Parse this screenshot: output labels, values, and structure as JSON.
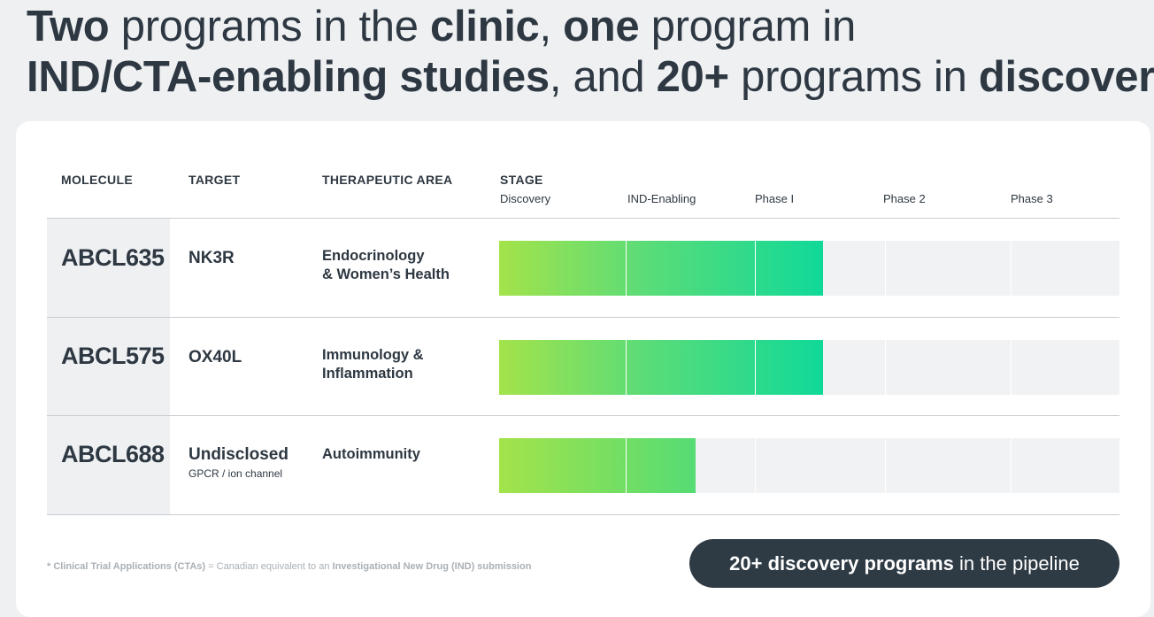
{
  "headline": {
    "line1": {
      "b1": "Two",
      "t1": " programs in the ",
      "b2": "clinic",
      "t2": ", ",
      "b3": "one",
      "t3": " program in"
    },
    "line2": {
      "b1": "IND/CTA-enabling studies",
      "t1": ", and ",
      "b2": "20+",
      "t2": " programs in ",
      "b3": "discovery",
      "t3": "."
    }
  },
  "columns": {
    "molecule": "MOLECULE",
    "target": "TARGET",
    "area": "THERAPEUTIC AREA",
    "stage": "STAGE",
    "stages": [
      "Discovery",
      "IND-Enabling",
      "Phase I",
      "Phase 2",
      "Phase 3"
    ]
  },
  "rows": [
    {
      "molecule": "ABCL635",
      "target": "NK3R",
      "target_sub": "",
      "area_line1": "Endocrinology",
      "area_line2": "& Women’s Health",
      "progress_stage": "Phase I",
      "progress_fraction": 0.522
    },
    {
      "molecule": "ABCL575",
      "target": "OX40L",
      "target_sub": "",
      "area_line1": "Immunology &",
      "area_line2": "Inflammation",
      "progress_stage": "Phase I",
      "progress_fraction": 0.522
    },
    {
      "molecule": "ABCL688",
      "target": "Undisclosed",
      "target_sub": "GPCR / ion channel",
      "area_line1": "Autoimmunity",
      "area_line2": "",
      "progress_stage": "IND-Enabling",
      "progress_fraction": 0.316
    }
  ],
  "footnote": {
    "b1": "* Clinical Trial Applications (CTAs)",
    "t1": " = Canadian equivalent to an ",
    "b2": "Investigational New Drug (IND) submission"
  },
  "pill": {
    "bold": "20+ discovery programs",
    "rest": " in the pipeline"
  },
  "colors": {
    "text": "#2e3842",
    "bar_start": "#a3e34a",
    "bar_end": "#10d998",
    "pill_bg": "#2e3a44"
  }
}
